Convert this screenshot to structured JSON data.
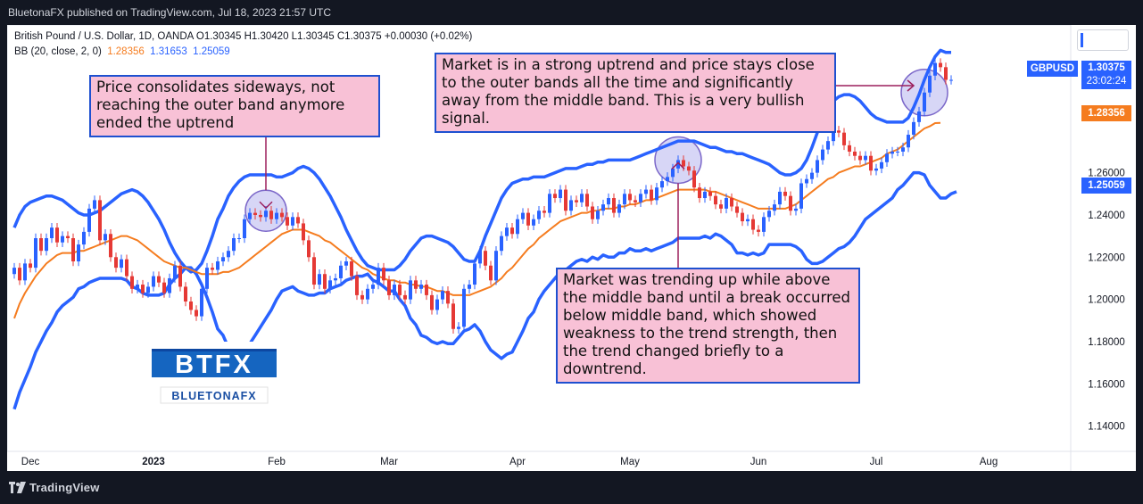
{
  "header": {
    "publisher": "BluetonaFX published on TradingView.com, Jul 18, 2023 21:57 UTC"
  },
  "legend": {
    "line1": "British Pound / U.S. Dollar, 1D, OANDA  O1.30345  H1.30420  L1.30345  C1.30375  +0.00030 (+0.02%)",
    "bb_label": "BB (20, close, 2, 0)",
    "bb_basis": "1.28356",
    "bb_upper": "1.31653",
    "bb_lower": "1.25059"
  },
  "price_tags": {
    "symbol": "GBPUSD",
    "last_price": "1.30375",
    "countdown": "23:02:24",
    "basis": "1.28356",
    "lower": "1.25059"
  },
  "annotations": {
    "note1": "Price consolidates sideways, not reaching the outer band anymore ended the uptrend",
    "note2": "Market is in a strong uptrend and price stays close to the outer bands all the time and significantly away from the middle band. This is a very bullish signal.",
    "note3": "Market was trending up while above the middle band until a break occurred below middle band, which showed weakness to the trend strength, then the trend changed briefly to a downtrend."
  },
  "logo": {
    "big": "BTFX",
    "small": "BLUETONAFX"
  },
  "footer": {
    "brand": "TradingView"
  },
  "colors": {
    "candle_up": "#2962ff",
    "candle_down": "#e53935",
    "band_line": "#2962ff",
    "band_fill": "#e3eefb",
    "basis_line": "#f57c1f",
    "note_fill": "#f8c1d6",
    "note_border": "#1e50d0",
    "highlight_circle": "#c9c8f3"
  },
  "chart_data": {
    "type": "candlestick",
    "title": "British Pound / U.S. Dollar, 1D, OANDA",
    "x_labels": [
      "Dec",
      "2023",
      "Feb",
      "Mar",
      "Apr",
      "May",
      "Jun",
      "Jul",
      "Aug"
    ],
    "y_ticks": [
      "1.26000",
      "1.24000",
      "1.22000",
      "1.20000",
      "1.18000",
      "1.16000",
      "1.14000"
    ],
    "ylim": [
      1.128,
      1.33
    ],
    "close": [
      1.215,
      1.209,
      1.217,
      1.215,
      1.229,
      1.223,
      1.229,
      1.234,
      1.227,
      1.23,
      1.229,
      1.218,
      1.226,
      1.232,
      1.243,
      1.247,
      1.228,
      1.231,
      1.22,
      1.215,
      1.219,
      1.211,
      1.205,
      1.207,
      1.203,
      1.206,
      1.211,
      1.208,
      1.203,
      1.21,
      1.216,
      1.206,
      1.199,
      1.195,
      1.192,
      1.205,
      1.215,
      1.214,
      1.218,
      1.22,
      1.223,
      1.229,
      1.229,
      1.238,
      1.241,
      1.24,
      1.239,
      1.242,
      1.238,
      1.241,
      1.239,
      1.235,
      1.239,
      1.236,
      1.228,
      1.22,
      1.207,
      1.212,
      1.205,
      1.209,
      1.21,
      1.216,
      1.218,
      1.211,
      1.202,
      1.2,
      1.205,
      1.207,
      1.215,
      1.209,
      1.202,
      1.207,
      1.202,
      1.2,
      1.209,
      1.205,
      1.207,
      1.202,
      1.195,
      1.2,
      1.204,
      1.198,
      1.186,
      1.187,
      1.205,
      1.207,
      1.217,
      1.223,
      1.216,
      1.209,
      1.223,
      1.23,
      1.234,
      1.231,
      1.238,
      1.241,
      1.235,
      1.238,
      1.242,
      1.241,
      1.25,
      1.248,
      1.252,
      1.242,
      1.247,
      1.246,
      1.25,
      1.244,
      1.238,
      1.242,
      1.245,
      1.248,
      1.241,
      1.245,
      1.25,
      1.247,
      1.246,
      1.25,
      1.252,
      1.247,
      1.253,
      1.256,
      1.258,
      1.262,
      1.266,
      1.263,
      1.261,
      1.253,
      1.248,
      1.251,
      1.249,
      1.245,
      1.243,
      1.248,
      1.244,
      1.241,
      1.237,
      1.238,
      1.233,
      1.232,
      1.239,
      1.242,
      1.245,
      1.251,
      1.249,
      1.242,
      1.243,
      1.255,
      1.257,
      1.26,
      1.266,
      1.271,
      1.275,
      1.28,
      1.279,
      1.273,
      1.27,
      1.268,
      1.266,
      1.268,
      1.261,
      1.262,
      1.265,
      1.269,
      1.27,
      1.27,
      1.272,
      1.278,
      1.284,
      1.289,
      1.298,
      1.306,
      1.312,
      1.31,
      1.304,
      1.304
    ],
    "upper_band": [
      1.234,
      1.24,
      1.244,
      1.246,
      1.247,
      1.248,
      1.249,
      1.249,
      1.248,
      1.247,
      1.245,
      1.243,
      1.241,
      1.24,
      1.24,
      1.241,
      1.242,
      1.244,
      1.246,
      1.248,
      1.25,
      1.251,
      1.252,
      1.251,
      1.249,
      1.246,
      1.242,
      1.238,
      1.233,
      1.227,
      1.222,
      1.218,
      1.215,
      1.213,
      1.214,
      1.217,
      1.223,
      1.23,
      1.238,
      1.243,
      1.249,
      1.253,
      1.256,
      1.258,
      1.259,
      1.259,
      1.259,
      1.259,
      1.259,
      1.258,
      1.258,
      1.259,
      1.26,
      1.262,
      1.263,
      1.262,
      1.26,
      1.257,
      1.253,
      1.249,
      1.244,
      1.239,
      1.233,
      1.228,
      1.223,
      1.219,
      1.216,
      1.215,
      1.214,
      1.214,
      1.214,
      1.214,
      1.216,
      1.219,
      1.223,
      1.226,
      1.229,
      1.23,
      1.23,
      1.229,
      1.228,
      1.227,
      1.225,
      1.222,
      1.219,
      1.218,
      1.218,
      1.223,
      1.23,
      1.236,
      1.242,
      1.248,
      1.252,
      1.255,
      1.256,
      1.257,
      1.257,
      1.258,
      1.258,
      1.258,
      1.259,
      1.26,
      1.261,
      1.262,
      1.262,
      1.262,
      1.263,
      1.264,
      1.264,
      1.265,
      1.265,
      1.266,
      1.266,
      1.266,
      1.266,
      1.266,
      1.267,
      1.268,
      1.269,
      1.27,
      1.271,
      1.272,
      1.273,
      1.274,
      1.275,
      1.275,
      1.275,
      1.275,
      1.274,
      1.273,
      1.272,
      1.272,
      1.271,
      1.27,
      1.27,
      1.269,
      1.269,
      1.268,
      1.267,
      1.266,
      1.265,
      1.264,
      1.262,
      1.26,
      1.259,
      1.259,
      1.26,
      1.262,
      1.266,
      1.272,
      1.279,
      1.285,
      1.29,
      1.294,
      1.296,
      1.297,
      1.297,
      1.296,
      1.294,
      1.291,
      1.288,
      1.286,
      1.285,
      1.284,
      1.284,
      1.284,
      1.284,
      1.286,
      1.291,
      1.297,
      1.304,
      1.31,
      1.315,
      1.318,
      1.317,
      1.317
    ],
    "basis": [
      1.191,
      1.198,
      1.203,
      1.207,
      1.211,
      1.214,
      1.217,
      1.219,
      1.221,
      1.222,
      1.222,
      1.222,
      1.223,
      1.223,
      1.224,
      1.225,
      1.226,
      1.227,
      1.228,
      1.229,
      1.23,
      1.23,
      1.229,
      1.228,
      1.226,
      1.224,
      1.222,
      1.22,
      1.218,
      1.217,
      1.216,
      1.215,
      1.215,
      1.214,
      1.213,
      1.212,
      1.212,
      1.212,
      1.212,
      1.213,
      1.213,
      1.214,
      1.215,
      1.217,
      1.219,
      1.221,
      1.223,
      1.225,
      1.227,
      1.229,
      1.231,
      1.232,
      1.233,
      1.233,
      1.233,
      1.232,
      1.231,
      1.23,
      1.228,
      1.227,
      1.225,
      1.223,
      1.221,
      1.219,
      1.217,
      1.215,
      1.214,
      1.212,
      1.211,
      1.21,
      1.209,
      1.209,
      1.208,
      1.208,
      1.207,
      1.207,
      1.206,
      1.206,
      1.205,
      1.204,
      1.204,
      1.203,
      1.202,
      1.202,
      1.202,
      1.202,
      1.203,
      1.204,
      1.205,
      1.206,
      1.208,
      1.21,
      1.213,
      1.215,
      1.218,
      1.221,
      1.224,
      1.226,
      1.229,
      1.231,
      1.233,
      1.235,
      1.237,
      1.238,
      1.239,
      1.24,
      1.241,
      1.241,
      1.242,
      1.242,
      1.243,
      1.243,
      1.243,
      1.244,
      1.244,
      1.245,
      1.245,
      1.246,
      1.247,
      1.247,
      1.248,
      1.249,
      1.25,
      1.251,
      1.252,
      1.252,
      1.252,
      1.252,
      1.252,
      1.252,
      1.251,
      1.251,
      1.25,
      1.249,
      1.248,
      1.247,
      1.246,
      1.245,
      1.244,
      1.243,
      1.243,
      1.243,
      1.243,
      1.243,
      1.243,
      1.244,
      1.245,
      1.247,
      1.249,
      1.251,
      1.253,
      1.255,
      1.257,
      1.258,
      1.26,
      1.261,
      1.262,
      1.263,
      1.263,
      1.264,
      1.265,
      1.266,
      1.267,
      1.269,
      1.27,
      1.271,
      1.273,
      1.275,
      1.277,
      1.279,
      1.281,
      1.282,
      1.2835,
      1.2836
    ],
    "lower_band": [
      1.148,
      1.156,
      1.162,
      1.168,
      1.175,
      1.18,
      1.185,
      1.189,
      1.194,
      1.197,
      1.199,
      1.201,
      1.205,
      1.206,
      1.208,
      1.209,
      1.21,
      1.21,
      1.21,
      1.21,
      1.21,
      1.209,
      1.206,
      1.205,
      1.203,
      1.202,
      1.202,
      1.202,
      1.203,
      1.207,
      1.21,
      1.212,
      1.215,
      1.215,
      1.212,
      1.207,
      1.201,
      1.194,
      1.186,
      1.183,
      1.177,
      1.175,
      1.174,
      1.176,
      1.179,
      1.183,
      1.187,
      1.191,
      1.195,
      1.2,
      1.204,
      1.205,
      1.206,
      1.204,
      1.203,
      1.202,
      1.202,
      1.203,
      1.203,
      1.205,
      1.206,
      1.207,
      1.209,
      1.21,
      1.211,
      1.211,
      1.212,
      1.209,
      1.208,
      1.206,
      1.204,
      1.204,
      1.2,
      1.197,
      1.191,
      1.188,
      1.183,
      1.182,
      1.18,
      1.179,
      1.18,
      1.179,
      1.179,
      1.182,
      1.185,
      1.186,
      1.188,
      1.185,
      1.18,
      1.176,
      1.174,
      1.172,
      1.174,
      1.175,
      1.18,
      1.185,
      1.191,
      1.194,
      1.2,
      1.204,
      1.207,
      1.21,
      1.213,
      1.214,
      1.216,
      1.218,
      1.219,
      1.218,
      1.22,
      1.219,
      1.221,
      1.22,
      1.22,
      1.222,
      1.222,
      1.224,
      1.223,
      1.223,
      1.224,
      1.223,
      1.224,
      1.225,
      1.226,
      1.227,
      1.229,
      1.229,
      1.229,
      1.229,
      1.229,
      1.23,
      1.229,
      1.231,
      1.23,
      1.228,
      1.226,
      1.222,
      1.222,
      1.221,
      1.222,
      1.221,
      1.222,
      1.226,
      1.226,
      1.226,
      1.226,
      1.226,
      1.225,
      1.223,
      1.219,
      1.217,
      1.217,
      1.218,
      1.22,
      1.222,
      1.224,
      1.225,
      1.227,
      1.23,
      1.234,
      1.238,
      1.24,
      1.242,
      1.244,
      1.246,
      1.248,
      1.252,
      1.254,
      1.257,
      1.26,
      1.26,
      1.259,
      1.254,
      1.251,
      1.248,
      1.248,
      1.25,
      1.251
    ]
  }
}
